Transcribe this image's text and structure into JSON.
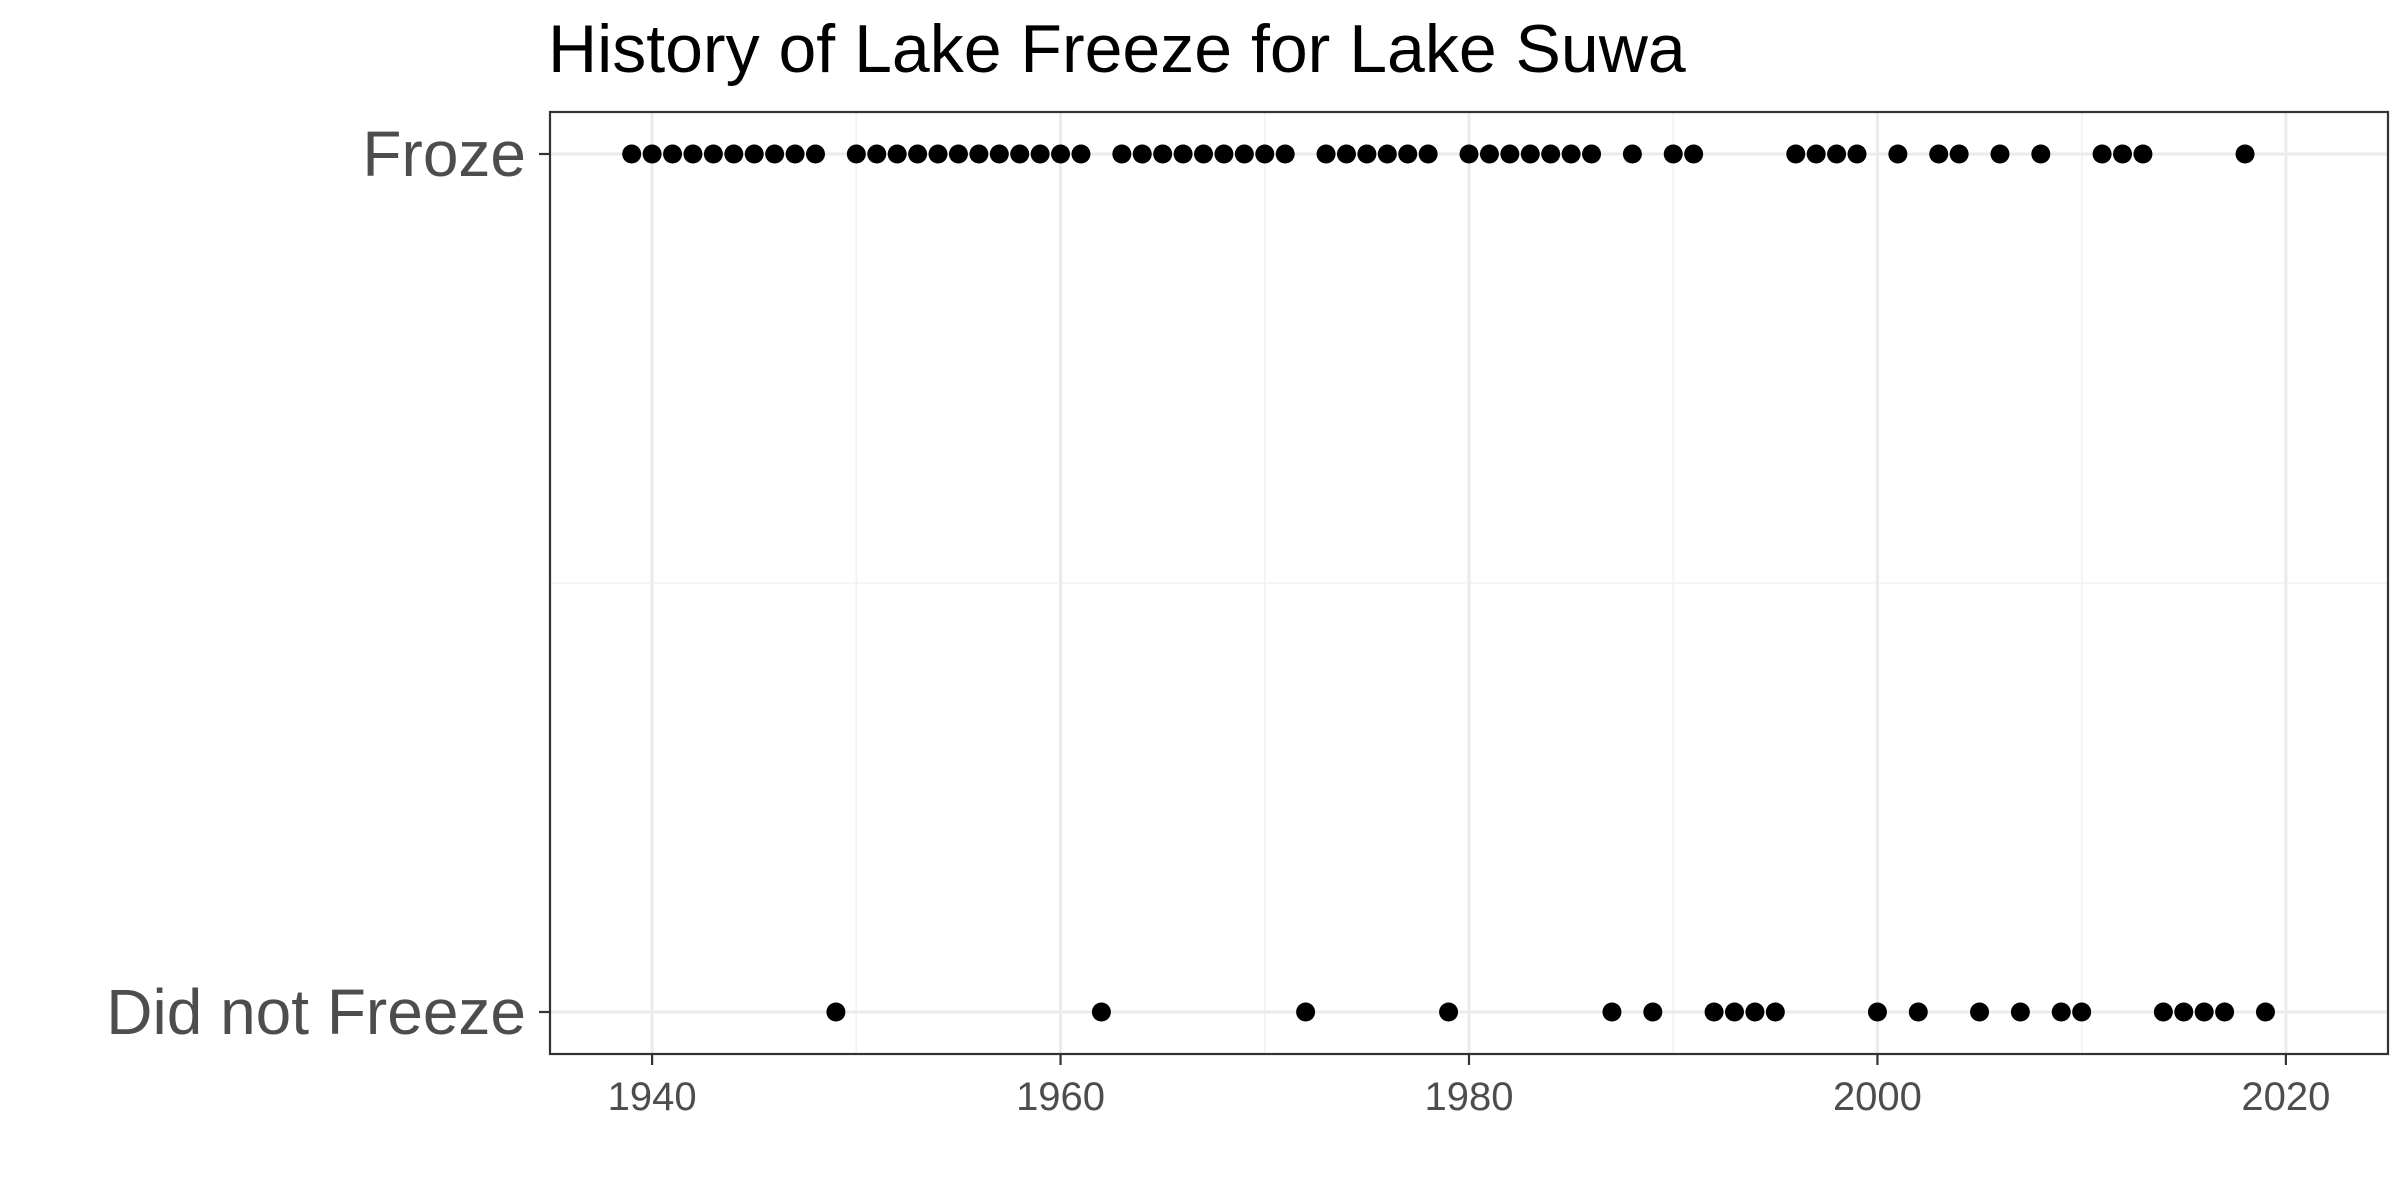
{
  "chart_data": {
    "type": "scatter",
    "title": "History of Lake Freeze for Lake Suwa",
    "xlabel": "",
    "ylabel": "",
    "xlim": [
      1935,
      2025
    ],
    "x_ticks": [
      1940,
      1960,
      1980,
      2000,
      2020
    ],
    "categories": [
      "Froze",
      "Did not Freeze"
    ],
    "grid": true,
    "point_color": "#000000",
    "series": [
      {
        "category": "Froze",
        "x": [
          1939,
          1940,
          1941,
          1942,
          1943,
          1944,
          1945,
          1946,
          1947,
          1948,
          1950,
          1951,
          1952,
          1953,
          1954,
          1955,
          1956,
          1957,
          1958,
          1959,
          1960,
          1961,
          1963,
          1964,
          1965,
          1966,
          1967,
          1968,
          1969,
          1970,
          1971,
          1973,
          1974,
          1975,
          1976,
          1977,
          1978,
          1980,
          1981,
          1982,
          1983,
          1984,
          1985,
          1986,
          1988,
          1990,
          1991,
          1996,
          1997,
          1998,
          1999,
          2001,
          2003,
          2004,
          2006,
          2008,
          2011,
          2012,
          2013,
          2018
        ]
      },
      {
        "category": "Did not Freeze",
        "x": [
          1949,
          1962,
          1972,
          1979,
          1987,
          1989,
          1992,
          1993,
          1994,
          1995,
          2000,
          2002,
          2005,
          2007,
          2009,
          2010,
          2014,
          2015,
          2016,
          2017,
          2019
        ]
      }
    ]
  }
}
